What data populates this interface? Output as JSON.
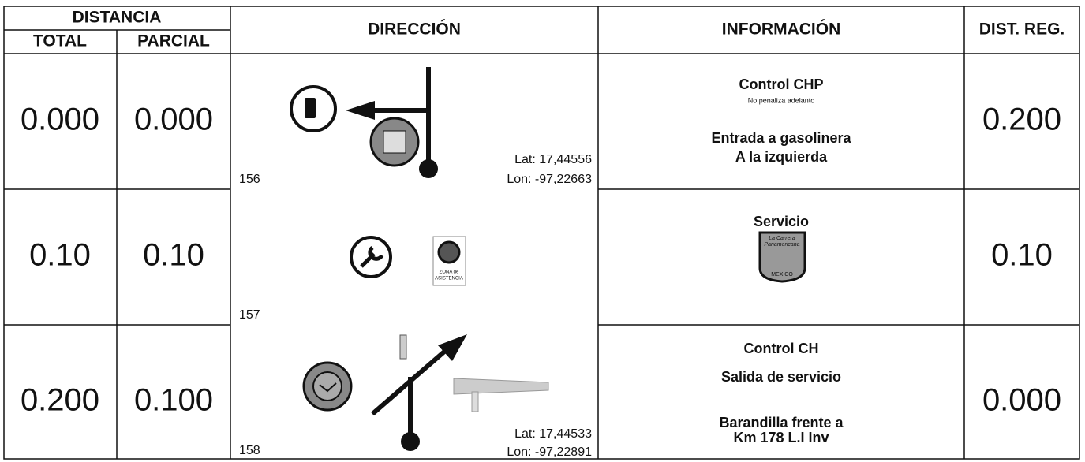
{
  "header": {
    "distancia": "DISTANCIA",
    "total": "TOTAL",
    "parcial": "PARCIAL",
    "direccion": "DIRECCIÓN",
    "informacion": "INFORMACIÓN",
    "dist_reg": "DIST. REG."
  },
  "rows": [
    {
      "total": "0.000",
      "parcial": "0.000",
      "number": "156",
      "lat": "Lat: 17,44556",
      "lon": "Lon: -97,22663",
      "info": [
        "Control CHP",
        "No penaliza adelanto",
        "Entrada a gasolinera",
        "A la izquierda"
      ],
      "dist_reg": "0.200"
    },
    {
      "total": "0.10",
      "parcial": "0.10",
      "number": "157",
      "sign": [
        "ZONA de",
        "ASISTENCIA"
      ],
      "info": [
        "Servicio"
      ],
      "logo": [
        "La Carrera",
        "Panamericana",
        "MEXICO"
      ],
      "dist_reg": "0.10"
    },
    {
      "total": "0.200",
      "parcial": "0.100",
      "number": "158",
      "lat": "Lat: 17,44533",
      "lon": "Lon: -97,22891",
      "info": [
        "Control CH",
        "Salida de servicio",
        "Barandilla frente a",
        "Km 178 L.I Inv"
      ],
      "dist_reg": "0.000"
    }
  ]
}
